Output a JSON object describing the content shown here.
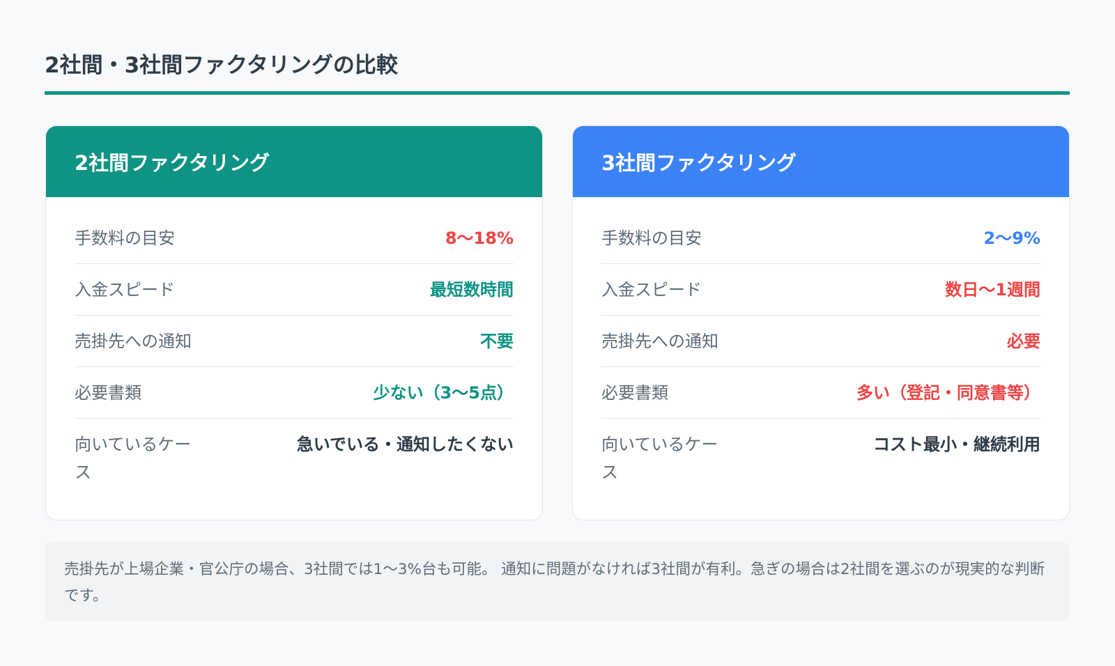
{
  "title": "2社間・3社間ファクタリングの比較",
  "colors": {
    "teal": "#0e9384",
    "blue": "#3b82f6",
    "red": "#ef4444",
    "dark": "#2d3a45"
  },
  "cards": [
    {
      "title": "2社間ファクタリング",
      "header_color": "#0e9384",
      "rows": [
        {
          "label": "手数料の目安",
          "value": "8〜18%",
          "color": "#ef4444"
        },
        {
          "label": "入金スピード",
          "value": "最短数時間",
          "color": "#0e9384"
        },
        {
          "label": "売掛先への通知",
          "value": "不要",
          "color": "#0e9384"
        },
        {
          "label": "必要書類",
          "value": "少ない（3〜5点）",
          "color": "#0e9384"
        },
        {
          "label": "向いているケース",
          "value": "急いでいる・通知したくない",
          "color": "#2d3a45"
        }
      ]
    },
    {
      "title": "3社間ファクタリング",
      "header_color": "#3b82f6",
      "rows": [
        {
          "label": "手数料の目安",
          "value": "2〜9%",
          "color": "#3b82f6"
        },
        {
          "label": "入金スピード",
          "value": "数日〜1週間",
          "color": "#ef4444"
        },
        {
          "label": "売掛先への通知",
          "value": "必要",
          "color": "#ef4444"
        },
        {
          "label": "必要書類",
          "value": "多い（登記・同意書等）",
          "color": "#ef4444"
        },
        {
          "label": "向いているケース",
          "value": "コスト最小・継続利用",
          "color": "#2d3a45"
        }
      ]
    }
  ],
  "note": "売掛先が上場企業・官公庁の場合、3社間では1〜3%台も可能。 通知に問題がなければ3社間が有利。急ぎの場合は2社間を選ぶのが現実的な判断です。"
}
